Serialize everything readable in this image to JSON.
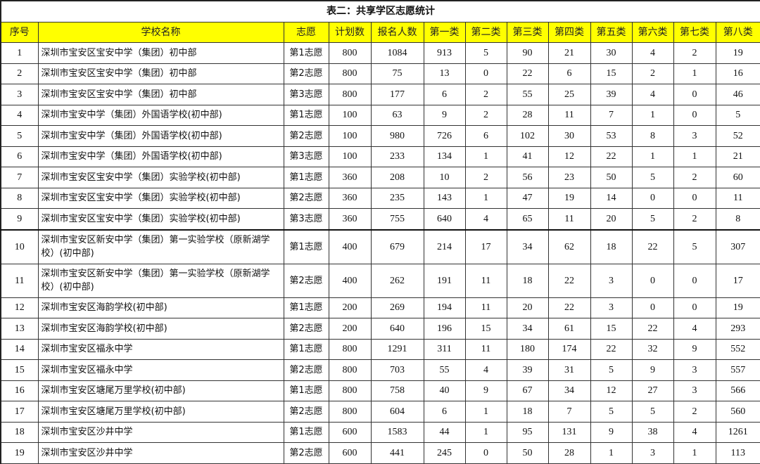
{
  "title": "表二：共享学区志愿统计",
  "header_color": "#ffff00",
  "columns": [
    "序号",
    "学校名称",
    "志愿",
    "计划数",
    "报名人数",
    "第一类",
    "第二类",
    "第三类",
    "第四类",
    "第五类",
    "第六类",
    "第七类",
    "第八类"
  ],
  "rows": [
    [
      "1",
      "深圳市宝安区宝安中学（集团）初中部",
      "第1志愿",
      "800",
      "1084",
      "913",
      "5",
      "90",
      "21",
      "30",
      "4",
      "2",
      "19"
    ],
    [
      "2",
      "深圳市宝安区宝安中学（集团）初中部",
      "第2志愿",
      "800",
      "75",
      "13",
      "0",
      "22",
      "6",
      "15",
      "2",
      "1",
      "16"
    ],
    [
      "3",
      "深圳市宝安区宝安中学（集团）初中部",
      "第3志愿",
      "800",
      "177",
      "6",
      "2",
      "55",
      "25",
      "39",
      "4",
      "0",
      "46"
    ],
    [
      "4",
      "深圳市宝安中学（集团）外国语学校(初中部)",
      "第1志愿",
      "100",
      "63",
      "9",
      "2",
      "28",
      "11",
      "7",
      "1",
      "0",
      "5"
    ],
    [
      "5",
      "深圳市宝安中学（集团）外国语学校(初中部)",
      "第2志愿",
      "100",
      "980",
      "726",
      "6",
      "102",
      "30",
      "53",
      "8",
      "3",
      "52"
    ],
    [
      "6",
      "深圳市宝安中学（集团）外国语学校(初中部)",
      "第3志愿",
      "100",
      "233",
      "134",
      "1",
      "41",
      "12",
      "22",
      "1",
      "1",
      "21"
    ],
    [
      "7",
      "深圳市宝安区宝安中学（集团）实验学校(初中部)",
      "第1志愿",
      "360",
      "208",
      "10",
      "2",
      "56",
      "23",
      "50",
      "5",
      "2",
      "60"
    ],
    [
      "8",
      "深圳市宝安区宝安中学（集团）实验学校(初中部)",
      "第2志愿",
      "360",
      "235",
      "143",
      "1",
      "47",
      "19",
      "14",
      "0",
      "0",
      "11"
    ],
    [
      "9",
      "深圳市宝安区宝安中学（集团）实验学校(初中部)",
      "第3志愿",
      "360",
      "755",
      "640",
      "4",
      "65",
      "11",
      "20",
      "5",
      "2",
      "8"
    ],
    [
      "10",
      "深圳市宝安区新安中学（集团）第一实验学校（原新湖学校）(初中部)",
      "第1志愿",
      "400",
      "679",
      "214",
      "17",
      "34",
      "62",
      "18",
      "22",
      "5",
      "307"
    ],
    [
      "11",
      "深圳市宝安区新安中学（集团）第一实验学校（原新湖学校）(初中部)",
      "第2志愿",
      "400",
      "262",
      "191",
      "11",
      "18",
      "22",
      "3",
      "0",
      "0",
      "17"
    ],
    [
      "12",
      "深圳市宝安区海韵学校(初中部)",
      "第1志愿",
      "200",
      "269",
      "194",
      "11",
      "20",
      "22",
      "3",
      "0",
      "0",
      "19"
    ],
    [
      "13",
      "深圳市宝安区海韵学校(初中部)",
      "第2志愿",
      "200",
      "640",
      "196",
      "15",
      "34",
      "61",
      "15",
      "22",
      "4",
      "293"
    ],
    [
      "14",
      "深圳市宝安区福永中学",
      "第1志愿",
      "800",
      "1291",
      "311",
      "11",
      "180",
      "174",
      "22",
      "32",
      "9",
      "552"
    ],
    [
      "15",
      "深圳市宝安区福永中学",
      "第2志愿",
      "800",
      "703",
      "55",
      "4",
      "39",
      "31",
      "5",
      "9",
      "3",
      "557"
    ],
    [
      "16",
      "深圳市宝安区塘尾万里学校(初中部)",
      "第1志愿",
      "800",
      "758",
      "40",
      "9",
      "67",
      "34",
      "12",
      "27",
      "3",
      "566"
    ],
    [
      "17",
      "深圳市宝安区塘尾万里学校(初中部)",
      "第2志愿",
      "800",
      "604",
      "6",
      "1",
      "18",
      "7",
      "5",
      "5",
      "2",
      "560"
    ],
    [
      "18",
      "深圳市宝安区沙井中学",
      "第1志愿",
      "600",
      "1583",
      "44",
      "1",
      "95",
      "131",
      "9",
      "38",
      "4",
      "1261"
    ],
    [
      "19",
      "深圳市宝安区沙井中学",
      "第2志愿",
      "600",
      "441",
      "245",
      "0",
      "50",
      "28",
      "1",
      "3",
      "1",
      "113"
    ]
  ]
}
